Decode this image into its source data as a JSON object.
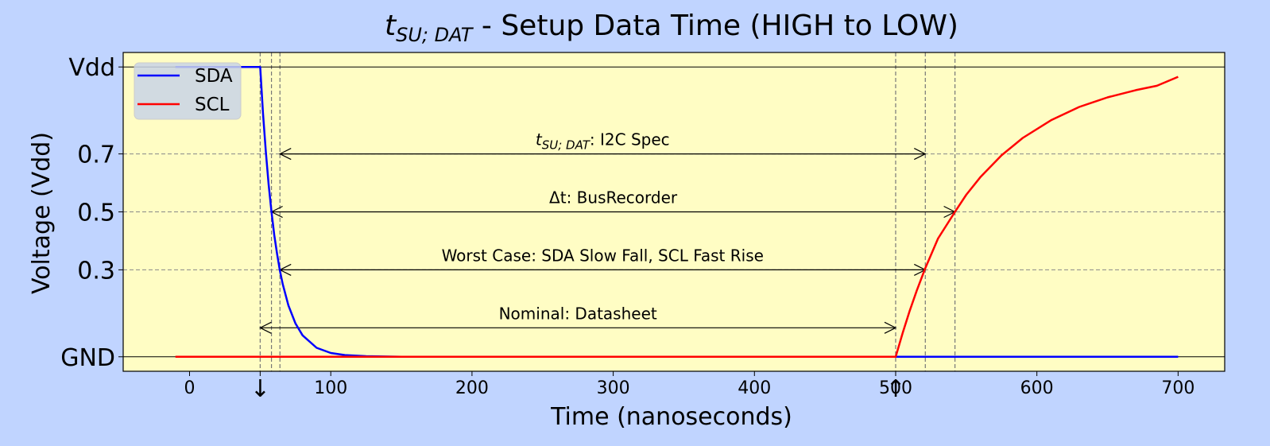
{
  "chart_data": {
    "type": "line",
    "title_main": "t",
    "title_sub": "SU; DAT",
    "title_rest": " - Setup Data Time (HIGH to LOW)",
    "xlabel": "Time (nanoseconds)",
    "ylabel": "Voltage (Vdd)",
    "xlim": [
      -47,
      733
    ],
    "ylim": [
      -0.05,
      1.05
    ],
    "x_ticks": [
      0,
      100,
      200,
      300,
      400,
      500,
      600,
      700
    ],
    "x_tick_labels": [
      "0",
      "100",
      "200",
      "300",
      "400",
      "500",
      "600",
      "700"
    ],
    "x_arrow_markers": [
      {
        "x": 50,
        "label": "↓"
      },
      {
        "x": 500,
        "label": "↑"
      }
    ],
    "y_ticks": [
      0,
      0.3,
      0.5,
      0.7,
      1.0
    ],
    "y_tick_labels": [
      "GND",
      "0.3",
      "0.5",
      "0.7",
      "Vdd"
    ],
    "vertical_lines_x": [
      50,
      58,
      64,
      500,
      521,
      542
    ],
    "legend_position": "upper-left",
    "colors": {
      "background": "#c0d4ff",
      "plot_bg": "#fffdc4",
      "sda": "#0000ff",
      "scl": "#ff0000"
    },
    "series": [
      {
        "name": "SDA",
        "color": "#0000ff",
        "x": [
          -10,
          50,
          52,
          54,
          56,
          58,
          60,
          62,
          64,
          66,
          70,
          75,
          80,
          90,
          100,
          110,
          125,
          150,
          200,
          300,
          400,
          500,
          600,
          700
        ],
        "y": [
          1.0,
          1.0,
          0.841,
          0.707,
          0.595,
          0.5,
          0.42,
          0.354,
          0.297,
          0.25,
          0.177,
          0.115,
          0.074,
          0.031,
          0.013,
          0.006,
          0.002,
          0,
          0,
          0,
          0,
          0,
          0,
          0
        ]
      },
      {
        "name": "SCL",
        "color": "#ff0000",
        "x": [
          -10,
          100,
          200,
          300,
          400,
          500,
          505,
          510,
          515,
          521,
          530,
          542,
          550,
          560,
          575,
          590,
          610,
          630,
          650,
          670,
          685,
          700
        ],
        "y": [
          0,
          0,
          0,
          0,
          0,
          0,
          0.083,
          0.159,
          0.229,
          0.306,
          0.408,
          0.5,
          0.559,
          0.62,
          0.695,
          0.755,
          0.816,
          0.862,
          0.895,
          0.92,
          0.935,
          0.966
        ]
      }
    ],
    "annotations": [
      {
        "x1": 64,
        "x2": 521,
        "y": 0.7,
        "label_main": "t",
        "label_sub": "SU; DAT",
        "label_rest": ": I2C Spec"
      },
      {
        "x1": 58,
        "x2": 542,
        "y": 0.5,
        "label_main": "Δt: BusRecorder",
        "label_sub": "",
        "label_rest": ""
      },
      {
        "x1": 64,
        "x2": 521,
        "y": 0.3,
        "label_main": "Worst Case: SDA Slow Fall, SCL Fast Rise",
        "label_sub": "",
        "label_rest": ""
      },
      {
        "x1": 50,
        "x2": 500,
        "y": 0.1,
        "label_main": "Nominal: Datasheet",
        "label_sub": "",
        "label_rest": ""
      }
    ]
  }
}
